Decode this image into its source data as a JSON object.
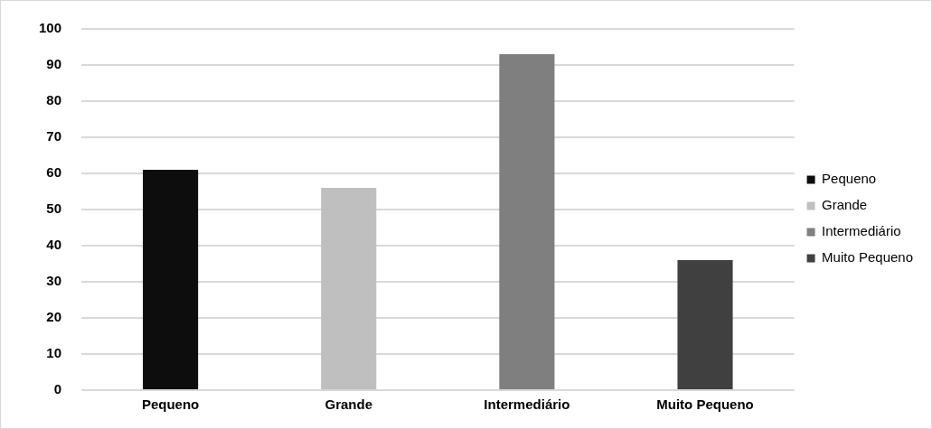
{
  "chart_data": {
    "type": "bar",
    "categories": [
      "Pequeno",
      "Grande",
      "Intermediário",
      "Muito Pequeno"
    ],
    "series": [
      {
        "name": "Pequeno",
        "color": "#0d0d0d",
        "values": [
          61,
          null,
          null,
          null
        ]
      },
      {
        "name": "Grande",
        "color": "#bfbfbf",
        "values": [
          null,
          56,
          null,
          null
        ]
      },
      {
        "name": "Intermediário",
        "color": "#7f7f7f",
        "values": [
          null,
          null,
          93,
          null
        ]
      },
      {
        "name": "Muito Pequeno",
        "color": "#404040",
        "values": [
          null,
          null,
          null,
          36
        ]
      }
    ],
    "ylim": [
      0,
      100
    ],
    "yticks": [
      0,
      10,
      20,
      30,
      40,
      50,
      60,
      70,
      80,
      90,
      100
    ],
    "grid": "y",
    "legend": "right"
  }
}
